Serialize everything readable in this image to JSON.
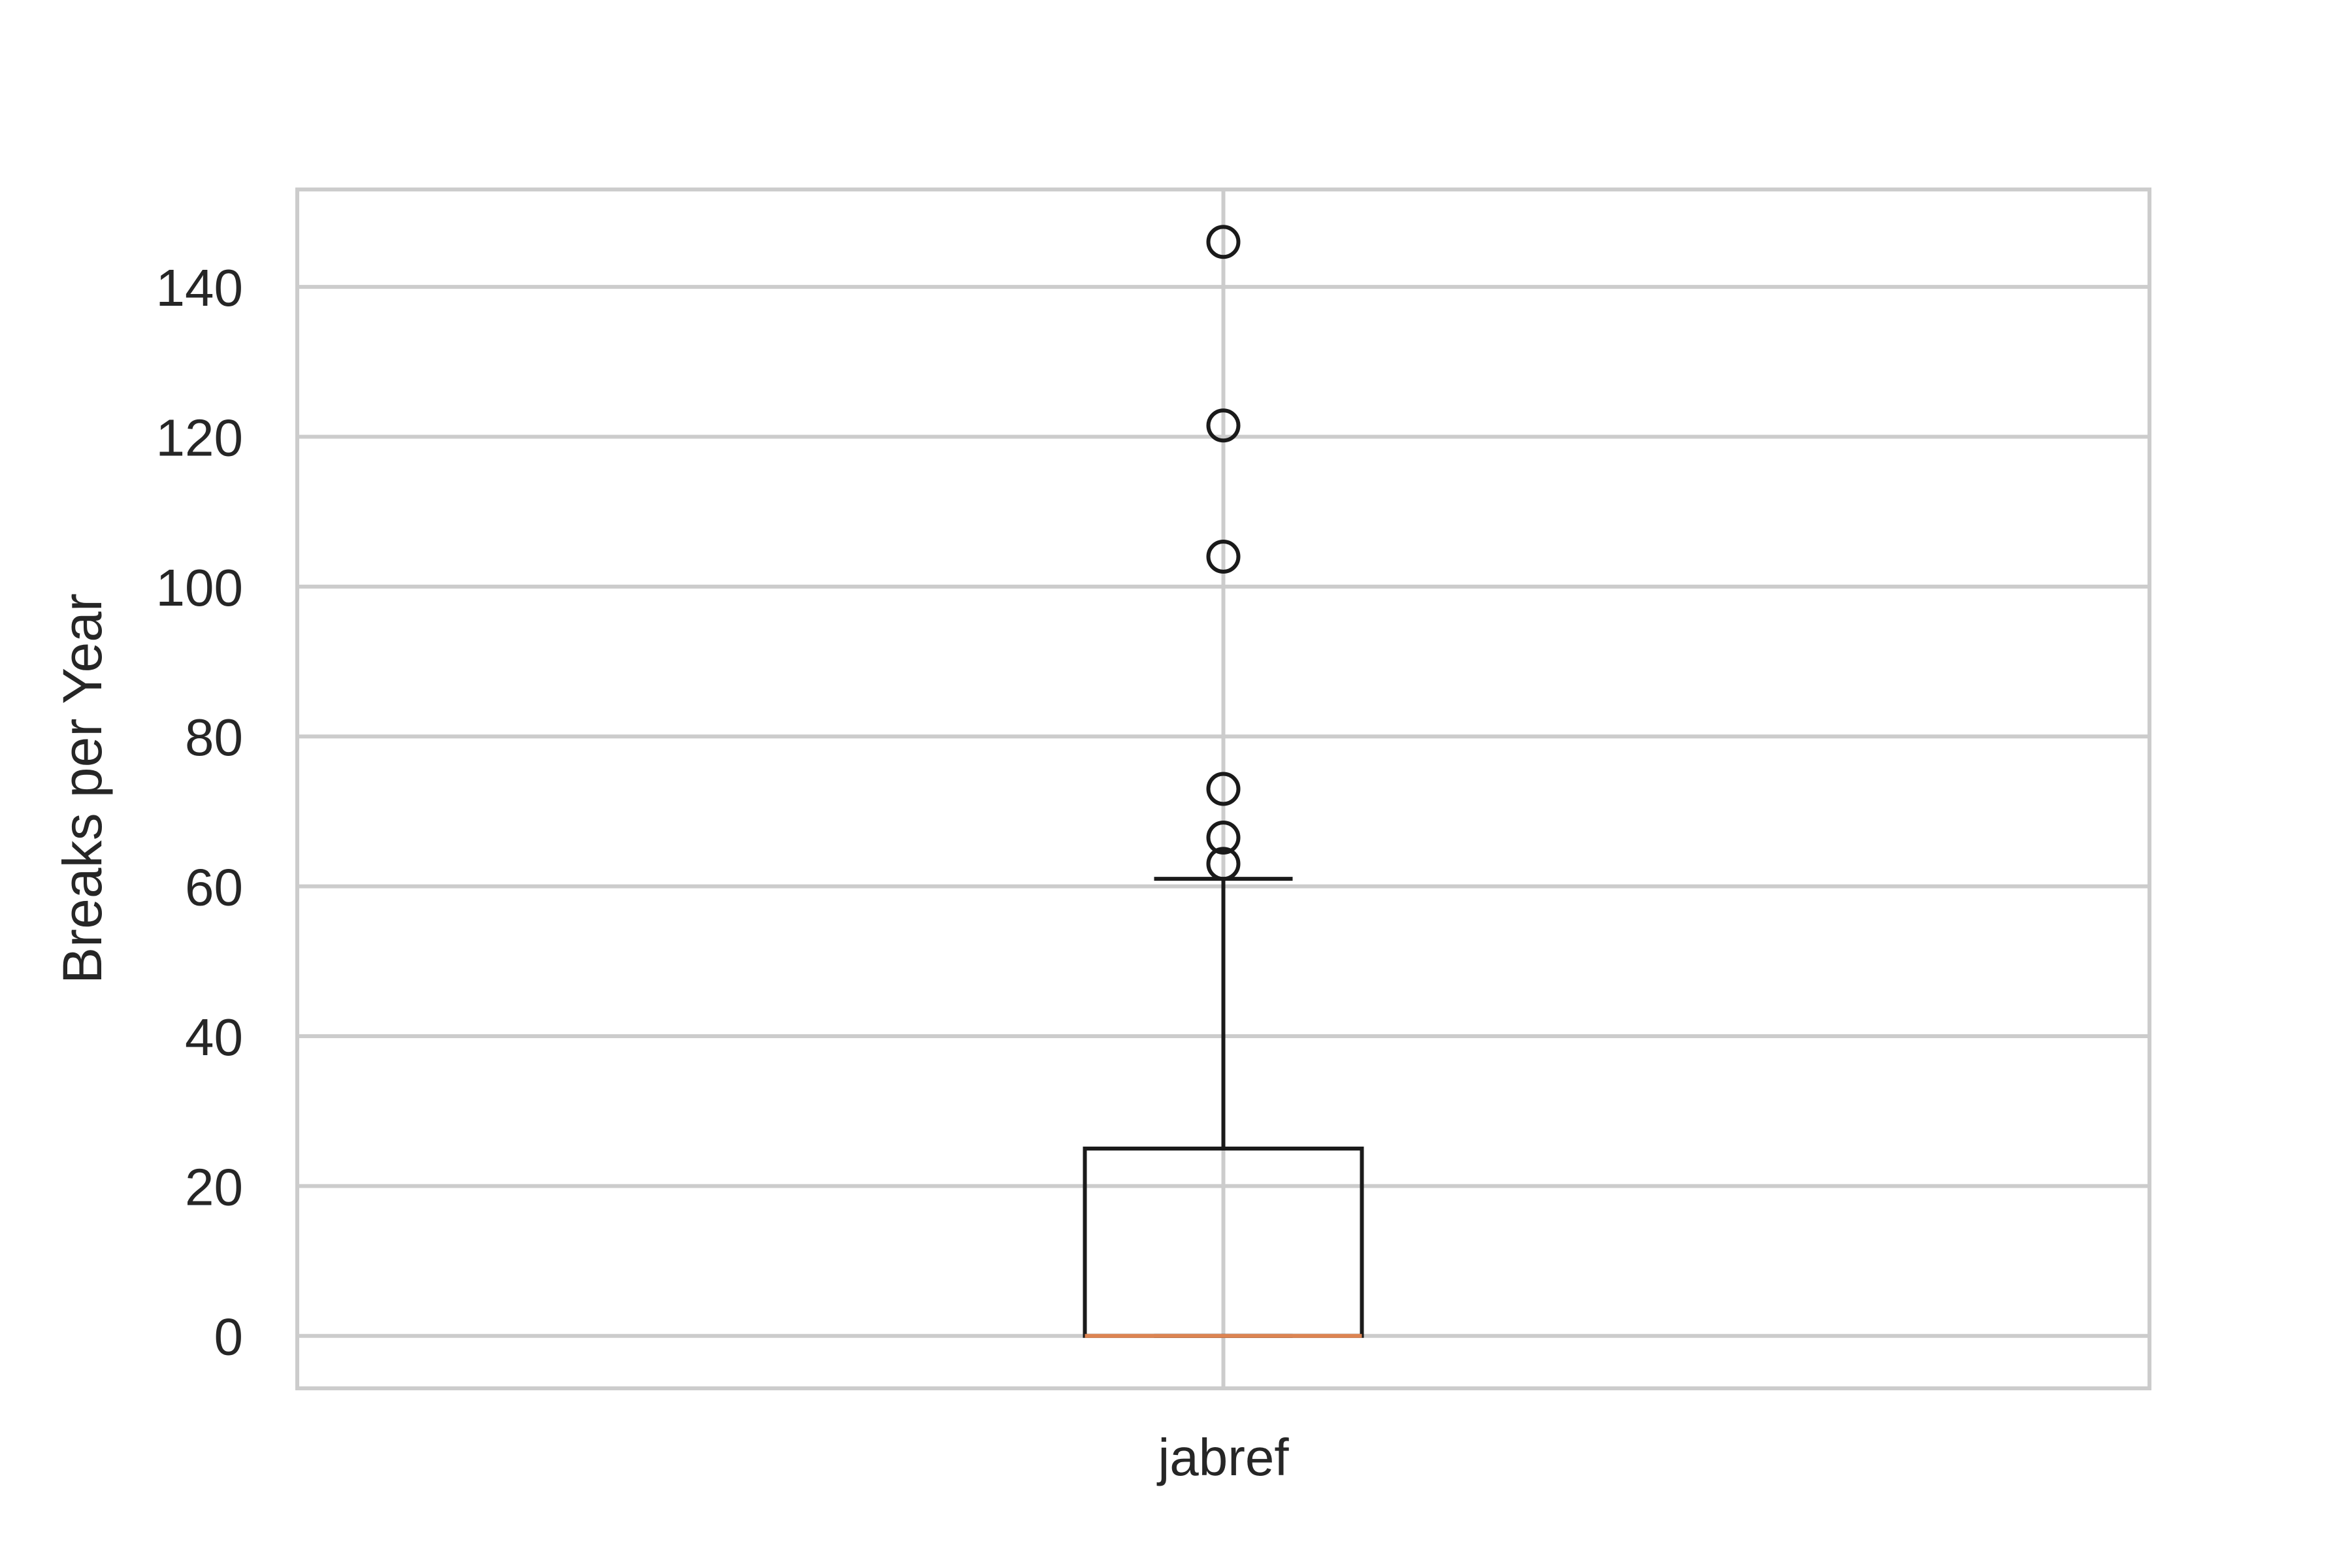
{
  "chart_data": {
    "type": "box",
    "title": "",
    "xlabel": "",
    "ylabel": "Breaks per Year",
    "categories": [
      "jabref"
    ],
    "ylim": [
      -7,
      153
    ],
    "yticks": [
      0,
      20,
      40,
      60,
      80,
      100,
      120,
      140
    ],
    "grid": true,
    "boxes": [
      {
        "category": "jabref",
        "whisker_low": 0,
        "q1": 0,
        "median": 0,
        "q3": 25,
        "whisker_high": 61,
        "outliers": [
          63,
          66.5,
          73,
          104,
          121.5,
          146
        ]
      }
    ],
    "colors": {
      "box": "#1a1a1a",
      "median": "#dd8452",
      "grid": "#cccccc",
      "frame": "#cccccc"
    }
  }
}
